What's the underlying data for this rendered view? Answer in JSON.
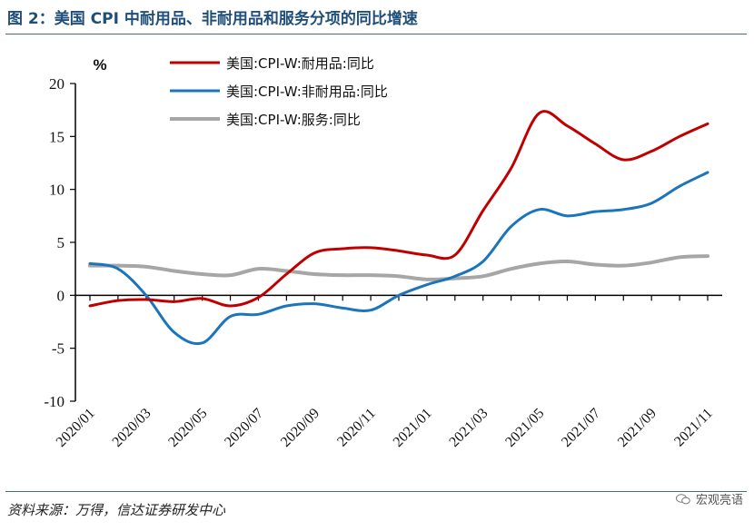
{
  "header": {
    "title": "图 2：美国 CPI 中耐用品、非耐用品和服务分项的同比增速"
  },
  "footer": {
    "source": "资料来源：万得，信达证券研发中心",
    "watermark": "宏观亮语"
  },
  "chart_data": {
    "type": "line",
    "ylabel": "%",
    "ylim": [
      -10,
      20
    ],
    "yticks": [
      -10,
      -5,
      0,
      5,
      10,
      15,
      20
    ],
    "x": [
      "2020/01",
      "2020/02",
      "2020/03",
      "2020/04",
      "2020/05",
      "2020/06",
      "2020/07",
      "2020/08",
      "2020/09",
      "2020/10",
      "2020/11",
      "2020/12",
      "2021/01",
      "2021/02",
      "2021/03",
      "2021/04",
      "2021/05",
      "2021/06",
      "2021/07",
      "2021/08",
      "2021/09",
      "2021/10",
      "2021/11"
    ],
    "xticklabels": [
      "2020/01",
      "2020/03",
      "2020/05",
      "2020/07",
      "2020/09",
      "2020/11",
      "2021/01",
      "2021/03",
      "2021/05",
      "2021/07",
      "2021/09",
      "2021/11"
    ],
    "legend_position": "top",
    "grid": false,
    "series": [
      {
        "name": "美国:CPI-W:耐用品:同比",
        "color": "#c00000",
        "values": [
          -1.0,
          -0.5,
          -0.4,
          -0.6,
          -0.3,
          -1.0,
          -0.2,
          2.0,
          4.0,
          4.4,
          4.5,
          4.2,
          3.8,
          3.8,
          8.0,
          12.0,
          17.2,
          16.0,
          14.3,
          12.8,
          13.6,
          15.0,
          16.2
        ]
      },
      {
        "name": "美国:CPI-W:非耐用品:同比",
        "color": "#1a75bc",
        "values": [
          3.0,
          2.5,
          0.0,
          -3.5,
          -4.5,
          -2.0,
          -1.8,
          -1.0,
          -0.8,
          -1.2,
          -1.4,
          0.0,
          1.0,
          1.8,
          3.2,
          6.5,
          8.1,
          7.5,
          7.9,
          8.1,
          8.7,
          10.3,
          11.6
        ]
      },
      {
        "name": "美国:CPI-W:服务:同比",
        "color": "#a6a6a6",
        "values": [
          2.8,
          2.8,
          2.7,
          2.3,
          2.0,
          1.9,
          2.5,
          2.3,
          2.0,
          1.9,
          1.9,
          1.8,
          1.5,
          1.6,
          1.8,
          2.5,
          3.0,
          3.2,
          2.9,
          2.8,
          3.1,
          3.6,
          3.7
        ]
      }
    ]
  }
}
